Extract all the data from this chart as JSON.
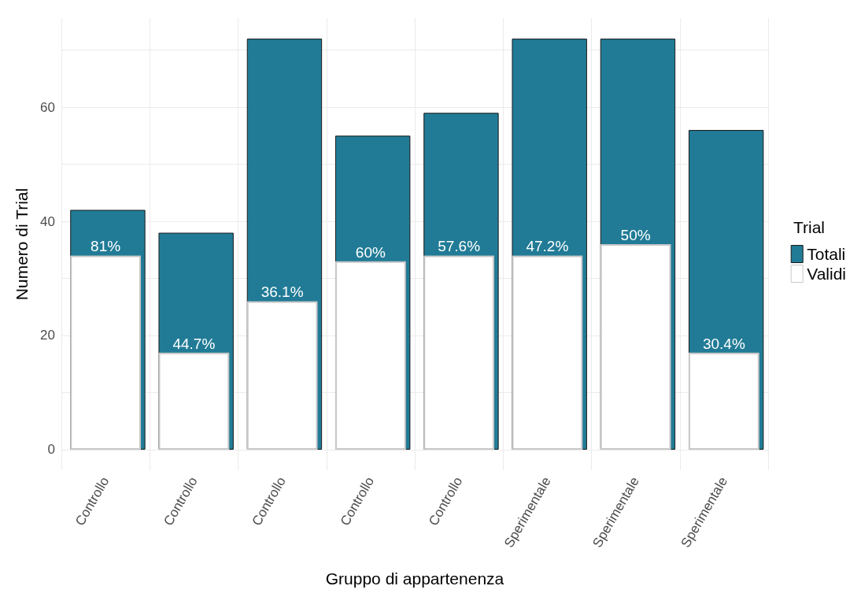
{
  "chart_data": {
    "type": "bar",
    "xlabel": "Gruppo di appartenenza",
    "ylabel": "Numero di Trial",
    "legend_title": "Trial",
    "legend": "right",
    "grid": true,
    "categories": [
      "Controllo",
      "Controllo",
      "Controllo",
      "Controllo",
      "Controllo",
      "Sperimentale",
      "Sperimentale",
      "Sperimentale"
    ],
    "series": [
      {
        "name": "Totali",
        "color": "#217b96",
        "values": [
          42,
          38,
          72,
          55,
          59,
          72,
          72,
          56
        ]
      },
      {
        "name": "Validi",
        "color": "#ffffff",
        "values": [
          34,
          17,
          26,
          33,
          34,
          34,
          36,
          17
        ]
      }
    ],
    "annotations": [
      "81%",
      "44.7%",
      "36.1%",
      "60%",
      "57.6%",
      "47.2%",
      "50%",
      "30.4%"
    ],
    "ylim": [
      -3.6,
      75.6
    ],
    "yticks": [
      0,
      {
        "value": 10,
        "label": null
      },
      20,
      {
        "value": 30,
        "label": null
      },
      40,
      {
        "value": 50,
        "label": null
      },
      60,
      {
        "value": 70,
        "label": null
      }
    ]
  }
}
